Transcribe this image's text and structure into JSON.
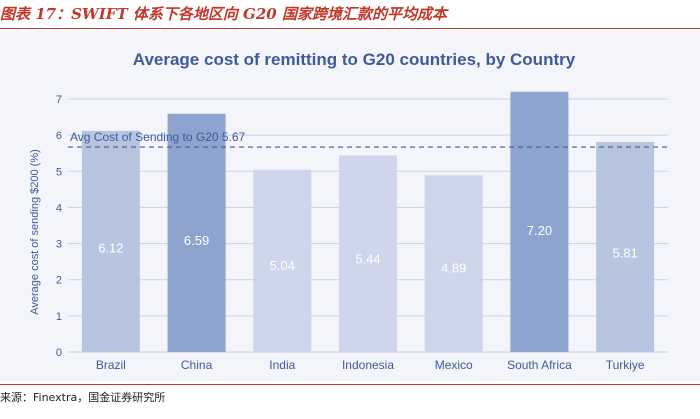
{
  "figure": {
    "caption": "图表 17：SWIFT 体系下各地区向 G20 国家跨境汇款的平均成本",
    "source": "来源：Finextra，国金证券研究所"
  },
  "chart_data": {
    "type": "bar",
    "title": "Average cost of remitting to G20 countries, by Country",
    "xlabel": "",
    "ylabel": "Average cost of sending $200 (%)",
    "ylim": [
      0,
      7
    ],
    "yticks": [
      0,
      1,
      2,
      3,
      4,
      5,
      6,
      7
    ],
    "grid": true,
    "categories": [
      "Brazil",
      "China",
      "India",
      "Indonesia",
      "Mexico",
      "South Africa",
      "Turkiye"
    ],
    "values": [
      6.12,
      6.59,
      5.04,
      5.44,
      4.89,
      7.2,
      5.81
    ],
    "value_labels": [
      "6.12",
      "6.59",
      "5.04",
      "5.44",
      "4.89",
      "7.20",
      "5.81"
    ],
    "reference_line": {
      "label": "Avg Cost of Sending  to G20 5.67",
      "value": 5.67
    },
    "colors": {
      "bar_light": "#cdd6ea",
      "bar_mid": "#b8c5e1",
      "bar_dark": "#8fa3cf",
      "title": "#3f5a9a",
      "axis_text": "#3f5a9a",
      "ref_line": "#3f5a9a"
    }
  }
}
